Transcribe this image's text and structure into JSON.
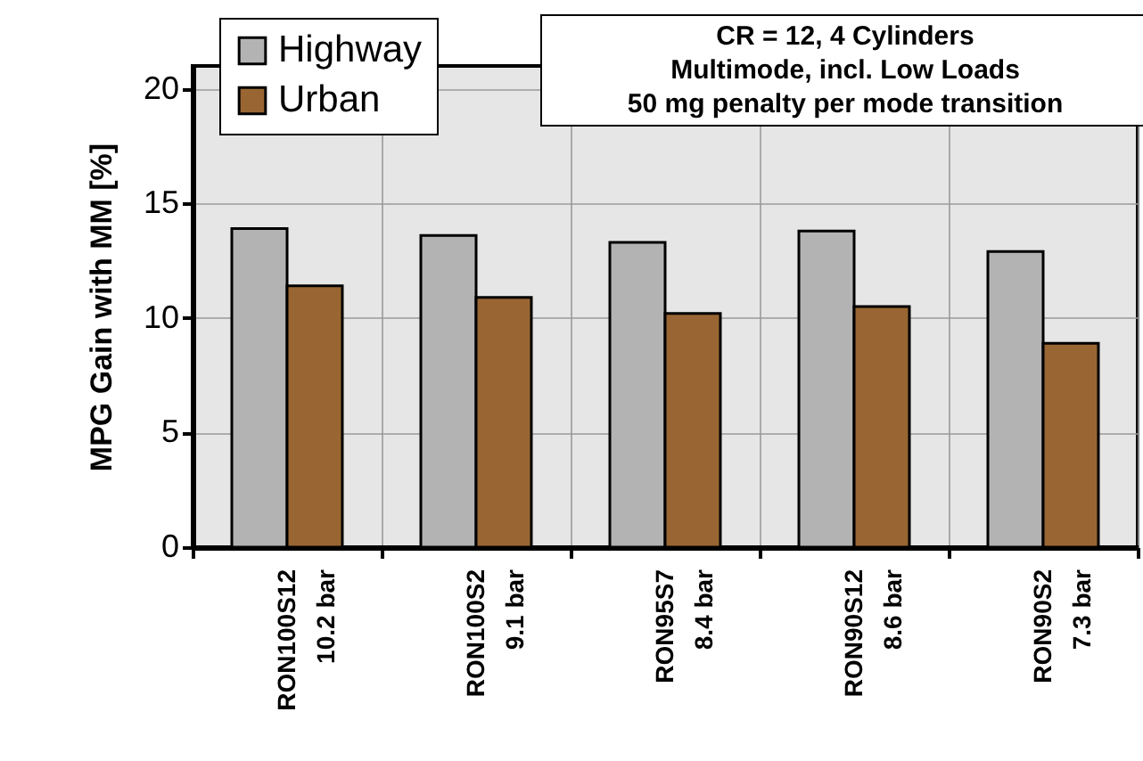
{
  "chart_data": {
    "type": "bar",
    "ylabel": "MPG Gain with MM [%]",
    "categories": [
      "RON100S12\n10.2 bar",
      "RON100S2\n9.1 bar",
      "RON95S7\n8.4 bar",
      "RON90S12\n8.6 bar",
      "RON90S2\n7.3 bar"
    ],
    "series": [
      {
        "name": "Highway",
        "color": "#b3b3b3",
        "values": [
          13.9,
          13.6,
          13.3,
          13.8,
          12.9
        ]
      },
      {
        "name": "Urban",
        "color": "#996633",
        "values": [
          11.4,
          10.9,
          10.2,
          10.5,
          8.9
        ]
      }
    ],
    "ylim": [
      0,
      21
    ],
    "yticks": [
      0,
      5,
      10,
      15,
      20
    ],
    "grid": true,
    "legend": "top left",
    "annotations": [
      "CR = 12, 4 Cylinders\nMultimode, incl. Low Loads\n50 mg penalty per mode transition"
    ]
  }
}
